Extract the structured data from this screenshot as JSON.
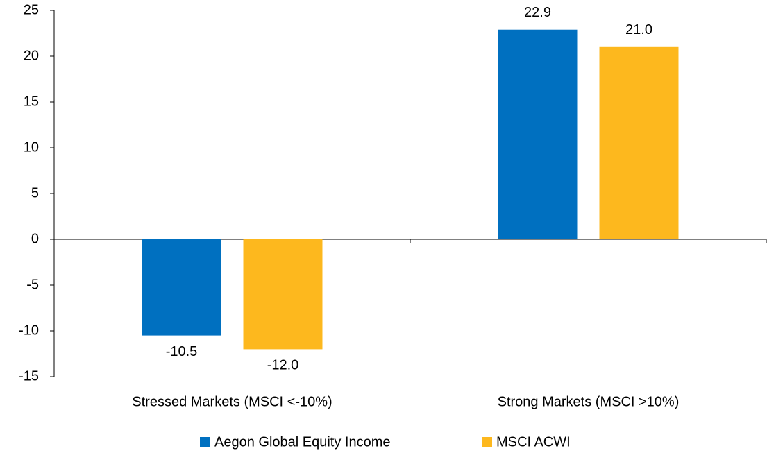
{
  "chart_data": {
    "type": "bar",
    "categories": [
      "Stressed Markets (MSCI <-10%)",
      "Strong Markets (MSCI >10%)"
    ],
    "series": [
      {
        "name": "Aegon Global Equity Income",
        "color": "#0070c0",
        "values": [
          -10.5,
          22.9
        ],
        "value_labels": [
          "-10.5",
          "22.9"
        ]
      },
      {
        "name": "MSCI ACWI",
        "color": "#fdb81e",
        "values": [
          -12.0,
          21.0
        ],
        "value_labels": [
          "-12.0",
          "21.0"
        ]
      }
    ],
    "ylim": [
      -15,
      25
    ],
    "yticks": [
      -15,
      -10,
      -5,
      0,
      5,
      10,
      15,
      20,
      25
    ],
    "legend": "bottom"
  }
}
